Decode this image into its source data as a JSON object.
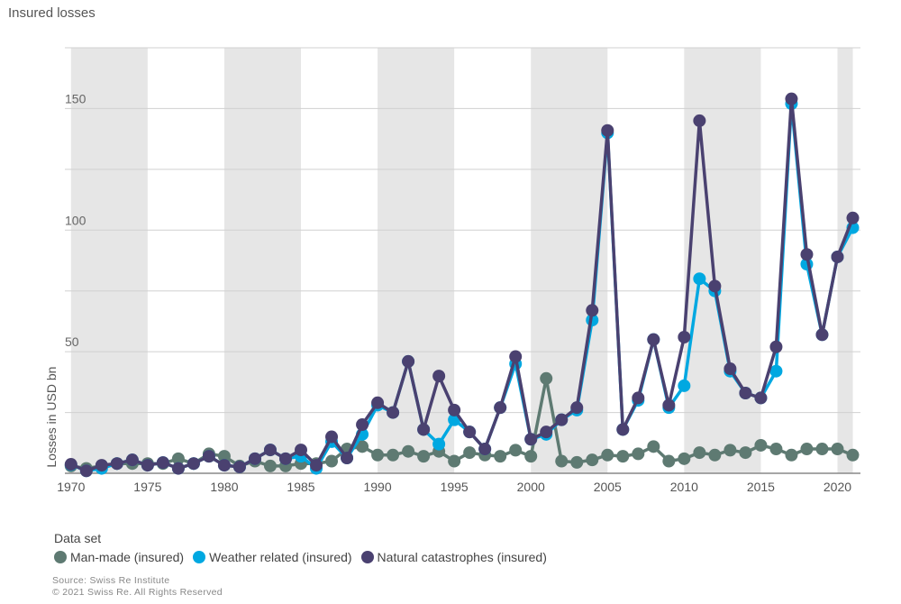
{
  "chart_data": {
    "type": "line",
    "title": "Insured losses",
    "ylabel": "Losses in USD bn",
    "xlabel": "",
    "xlim": [
      1969.6,
      2021.5
    ],
    "ylim": [
      0,
      175
    ],
    "grid": true,
    "y_ticks": [
      50,
      100,
      150
    ],
    "x_ticks": [
      1970,
      1975,
      1980,
      1985,
      1990,
      1995,
      2000,
      2005,
      2010,
      2015,
      2020
    ],
    "shaded_bands": [
      [
        1970,
        1975
      ],
      [
        1980,
        1985
      ],
      [
        1990,
        1995
      ],
      [
        2000,
        2005
      ],
      [
        2010,
        2015
      ],
      [
        2020,
        2021
      ]
    ],
    "legend_title": "Data set",
    "legend_position": "bottom-left",
    "x": [
      1970,
      1971,
      1972,
      1973,
      1974,
      1975,
      1976,
      1977,
      1978,
      1979,
      1980,
      1981,
      1982,
      1983,
      1984,
      1985,
      1986,
      1987,
      1988,
      1989,
      1990,
      1991,
      1992,
      1993,
      1994,
      1995,
      1996,
      1997,
      1998,
      1999,
      2000,
      2001,
      2002,
      2003,
      2004,
      2005,
      2006,
      2007,
      2008,
      2009,
      2010,
      2011,
      2012,
      2013,
      2014,
      2015,
      2016,
      2017,
      2018,
      2019,
      2020,
      2021
    ],
    "series": [
      {
        "name": "Man-made (insured)",
        "color": "#5e7a72",
        "values": [
          3,
          2,
          3,
          4,
          4,
          4,
          4,
          6,
          4,
          8,
          7,
          3,
          5,
          3,
          3,
          4,
          4,
          5,
          10,
          11,
          7.5,
          7.5,
          9,
          7,
          9,
          5,
          8.5,
          7.5,
          7,
          9.5,
          7,
          39,
          5,
          4.5,
          5.5,
          7.5,
          7,
          8,
          11,
          5,
          6,
          8.5,
          7.5,
          9.5,
          8.5,
          11.5,
          10,
          7.5,
          10,
          10,
          10,
          7.5
        ]
      },
      {
        "name": "Weather related (insured)",
        "color": "#00a8e1",
        "values": [
          3.5,
          1,
          2,
          4,
          5.5,
          3.3,
          4.4,
          2,
          4,
          7,
          3.3,
          2.6,
          6,
          9.6,
          6,
          7,
          2,
          13,
          6.3,
          16,
          28,
          25,
          46,
          18,
          12,
          22,
          17,
          10,
          27,
          45,
          14,
          16,
          22,
          26,
          63,
          140,
          18,
          30,
          55,
          27,
          36,
          80,
          75,
          42,
          33,
          31,
          42,
          152,
          86,
          57,
          89,
          101
        ]
      },
      {
        "name": "Natural catastrophes (insured)",
        "color": "#4a4170",
        "values": [
          3.7,
          1,
          3.3,
          4,
          5.5,
          3.3,
          4.4,
          2,
          4,
          7,
          3.3,
          2.6,
          6,
          9.6,
          6,
          9.6,
          3.3,
          15,
          6.3,
          20,
          29,
          25,
          46,
          18,
          40,
          26,
          17,
          10,
          27,
          48,
          14,
          17,
          22,
          27,
          67,
          141,
          18,
          31,
          55,
          28,
          56,
          145,
          77,
          43,
          33,
          31,
          52,
          154,
          90,
          57,
          89,
          105
        ]
      }
    ]
  },
  "source": "Source: Swiss Re Institute",
  "copyright": "© 2021 Swiss Re. All Rights Reserved"
}
